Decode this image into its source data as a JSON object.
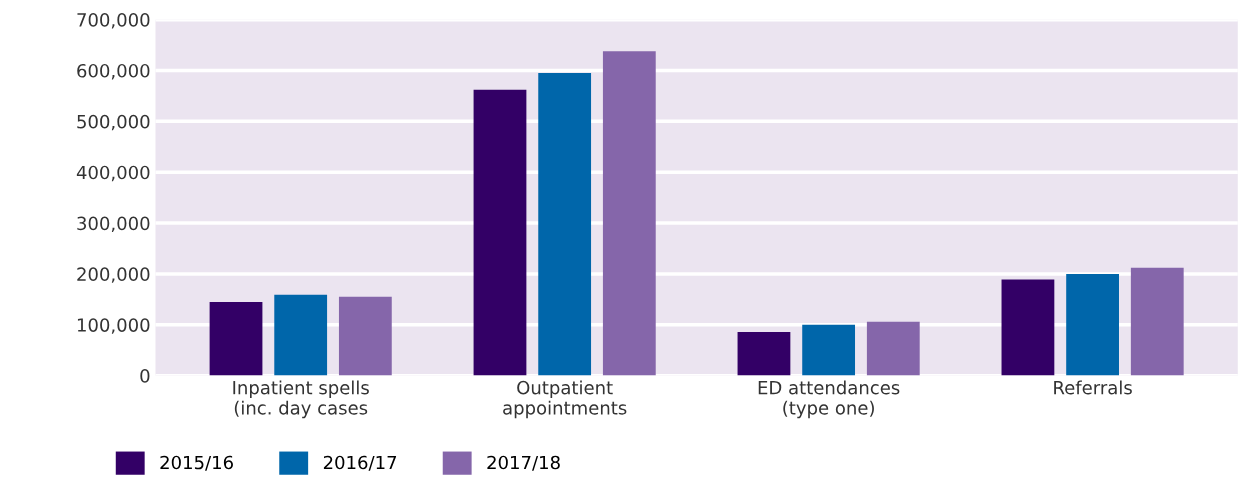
{
  "chart_data": {
    "type": "bar",
    "categories": [
      "Inpatient spells\n(inc. day cases",
      "Outpatient\nappointments",
      "ED attendances\n(type one)",
      "Referrals"
    ],
    "series": [
      {
        "name": "2015/16",
        "color": "#330066",
        "values": [
          145000,
          562000,
          86000,
          189000
        ]
      },
      {
        "name": "2016/17",
        "color": "#0066aa",
        "values": [
          159000,
          595000,
          100000,
          200000
        ]
      },
      {
        "name": "2017/18",
        "color": "#8566aa",
        "values": [
          155000,
          638000,
          106000,
          212000
        ]
      }
    ],
    "ylim": [
      0,
      700000
    ],
    "yticks": [
      {
        "value": 0,
        "label": "0"
      },
      {
        "value": 100000,
        "label": "100,000"
      },
      {
        "value": 200000,
        "label": "200,000"
      },
      {
        "value": 300000,
        "label": "300,000"
      },
      {
        "value": 400000,
        "label": "400,000"
      },
      {
        "value": 500000,
        "label": "500,000"
      },
      {
        "value": 600000,
        "label": "600,000"
      },
      {
        "value": 700000,
        "label": "700,000"
      }
    ],
    "grid": "y",
    "legend": "bottom left"
  }
}
